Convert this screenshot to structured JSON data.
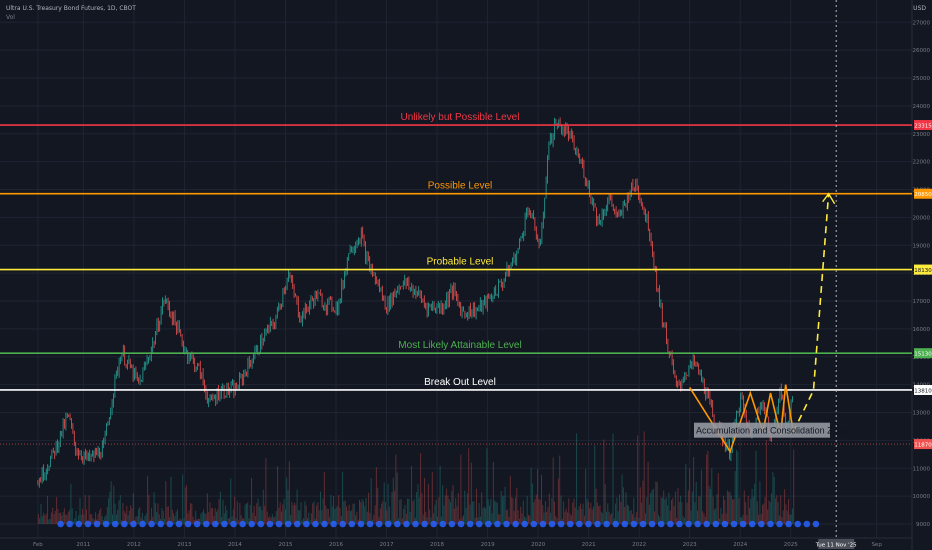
{
  "header": {
    "title": "Ultra U.S. Treasury Bond Futures, 1D, CBOT",
    "volume_label": "Vol",
    "currency": "USD"
  },
  "chart_data": {
    "type": "line",
    "title": "Ultra U.S. Treasury Bond Futures, 1D, CBOT",
    "x_ticks": [
      "Feb",
      "2011",
      "2012",
      "2013",
      "2014",
      "2015",
      "2016",
      "2017",
      "2018",
      "2019",
      "2020",
      "2021",
      "2022",
      "2023",
      "2024",
      "2025",
      "Sep"
    ],
    "x_ticks_years": [
      2010.1,
      2011,
      2012,
      2013,
      2014,
      2015,
      2016,
      2017,
      2018,
      2019,
      2020,
      2021,
      2022,
      2023,
      2024,
      2025,
      2026.7
    ],
    "y_ticks": [
      9000,
      10000,
      11000,
      12000,
      13000,
      14000,
      15000,
      16000,
      17000,
      18000,
      19000,
      20000,
      21000,
      22000,
      23000,
      24000,
      25000,
      26000,
      27000
    ],
    "ylim": [
      8500,
      27800
    ],
    "xlim": [
      2009.35,
      2027.4
    ],
    "series": [
      {
        "x": [
          2010.1,
          2010.4,
          2010.7,
          2010.85,
          2011.1,
          2011.4,
          2011.6,
          2011.75,
          2012.1,
          2012.4,
          2012.6,
          2012.8,
          2013.0,
          2013.3,
          2013.5,
          2013.7,
          2014.0,
          2014.3,
          2014.6,
          2014.8,
          2015.05,
          2015.3,
          2015.6,
          2015.8,
          2016.05,
          2016.25,
          2016.5,
          2016.6,
          2016.85,
          2017.0,
          2017.3,
          2017.6,
          2017.8,
          2018.1,
          2018.3,
          2018.5,
          2018.8,
          2019.0,
          2019.3,
          2019.6,
          2019.8,
          2019.9,
          2020.05,
          2020.2,
          2020.35,
          2020.6,
          2020.9,
          2021.2,
          2021.4,
          2021.6,
          2021.8,
          2021.95,
          2022.2,
          2022.4,
          2022.6,
          2022.75,
          2022.9,
          2023.1,
          2023.3,
          2023.5,
          2023.8,
          2024.0,
          2024.2,
          2024.45,
          2024.6,
          2024.8,
          2024.9,
          2025.05
        ],
        "values": [
          10500,
          11500,
          12900,
          11700,
          11300,
          11700,
          13900,
          15200,
          14000,
          15600,
          17100,
          16300,
          15300,
          14500,
          13300,
          13800,
          13800,
          14800,
          15800,
          16300,
          18000,
          16400,
          17200,
          16900,
          16800,
          18800,
          19400,
          18500,
          17500,
          16800,
          17700,
          17300,
          16800,
          16800,
          17400,
          16600,
          16700,
          17000,
          17700,
          18800,
          20400,
          19800,
          18900,
          22500,
          23400,
          23000,
          21700,
          19800,
          20700,
          19900,
          20900,
          21200,
          19600,
          17000,
          15100,
          13800,
          14400,
          14800,
          13900,
          12600,
          11600,
          13600,
          12100,
          13600,
          12000,
          14000,
          12300,
          13800
        ]
      }
    ],
    "levels": [
      {
        "label": "Unlikely but Possible Level",
        "value": 23315,
        "tag": "23315",
        "color": "#f23645"
      },
      {
        "label": "Possible Level",
        "value": 20850,
        "tag": "20850",
        "color": "#ff9800"
      },
      {
        "label": "Probable Level",
        "value": 18130,
        "tag": "18130",
        "color": "#ffeb3b"
      },
      {
        "label": "Most Likely Attainable Level",
        "value": 15130,
        "tag": "15130",
        "color": "#4caf50"
      },
      {
        "label": "Break Out Level",
        "value": 13810,
        "tag": "13810",
        "color": "#ffffff"
      }
    ],
    "last_price": {
      "value": 11870,
      "tag": "11870"
    },
    "annotation": {
      "text": "Accumulation and Consolidation Zone"
    },
    "forecast": {
      "x": [
        2025.05,
        2025.45,
        2025.75
      ],
      "values": [
        12300,
        13800,
        20850
      ]
    },
    "time_marker": {
      "x": 2025.9,
      "label": "Tue 11 Nov '25"
    }
  }
}
